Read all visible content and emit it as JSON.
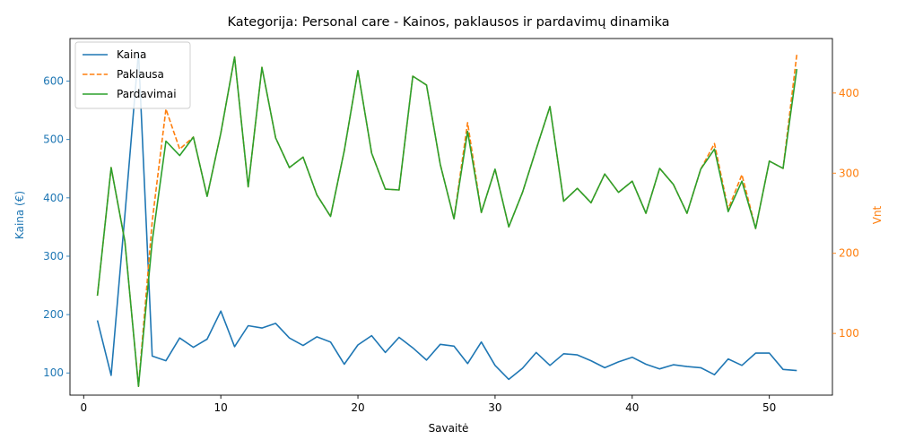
{
  "chart_data": {
    "type": "line",
    "title": "Kategorija: Personal care - Kainos, paklausos ir pardavimų dinamika",
    "xlabel": "Savaitė",
    "ylabel_left": "Kaina (€)",
    "ylabel_right": "Vnt",
    "xlim": [
      -1,
      54.6
    ],
    "ylim_left": [
      62,
      673
    ],
    "ylim_right": [
      23,
      468
    ],
    "x_ticks": [
      0,
      10,
      20,
      30,
      40,
      50
    ],
    "y_ticks_left": [
      100,
      200,
      300,
      400,
      500,
      600
    ],
    "y_ticks_right": [
      100,
      200,
      300,
      400
    ],
    "legend_position": "upper-left",
    "grid": false,
    "x": [
      1,
      2,
      3,
      4,
      5,
      6,
      7,
      8,
      9,
      10,
      11,
      12,
      13,
      14,
      15,
      16,
      17,
      18,
      19,
      20,
      21,
      22,
      23,
      24,
      25,
      26,
      27,
      28,
      29,
      30,
      31,
      32,
      33,
      34,
      35,
      36,
      37,
      38,
      39,
      40,
      41,
      42,
      43,
      44,
      45,
      46,
      47,
      48,
      49,
      50,
      51,
      52
    ],
    "series": [
      {
        "name": "Kaina",
        "axis": "left",
        "color": "#1f77b4",
        "style": "solid",
        "values": [
          190,
          96,
          370,
          650,
          129,
          121,
          160,
          144,
          158,
          206,
          145,
          181,
          177,
          185,
          160,
          147,
          162,
          153,
          115,
          148,
          164,
          135,
          161,
          143,
          122,
          149,
          146,
          116,
          153,
          113,
          89,
          108,
          135,
          113,
          133,
          131,
          121,
          109,
          119,
          127,
          115,
          107,
          114,
          111,
          109,
          97,
          124,
          113,
          134,
          134,
          106,
          104
        ]
      },
      {
        "name": "Paklausa",
        "axis": "right",
        "color": "#ff7f0e",
        "style": "dashed",
        "values": [
          147,
          307,
          215,
          34,
          240,
          380,
          330,
          345,
          271,
          350,
          445,
          283,
          432,
          344,
          307,
          320,
          273,
          246,
          328,
          428,
          325,
          280,
          279,
          421,
          410,
          311,
          243,
          363,
          251,
          305,
          233,
          276,
          330,
          383,
          265,
          281,
          263,
          299,
          276,
          290,
          250,
          306,
          286,
          250,
          305,
          337,
          255,
          298,
          231,
          315,
          306,
          448
        ]
      },
      {
        "name": "Pardavimai",
        "axis": "right",
        "color": "#2ca02c",
        "style": "solid",
        "values": [
          147,
          307,
          215,
          34,
          215,
          340,
          322,
          345,
          271,
          350,
          445,
          283,
          432,
          344,
          307,
          320,
          273,
          246,
          328,
          428,
          325,
          280,
          279,
          421,
          410,
          311,
          243,
          352,
          251,
          305,
          233,
          276,
          330,
          383,
          265,
          281,
          263,
          299,
          276,
          290,
          250,
          306,
          286,
          250,
          305,
          330,
          252,
          290,
          231,
          315,
          306,
          430
        ]
      }
    ]
  }
}
